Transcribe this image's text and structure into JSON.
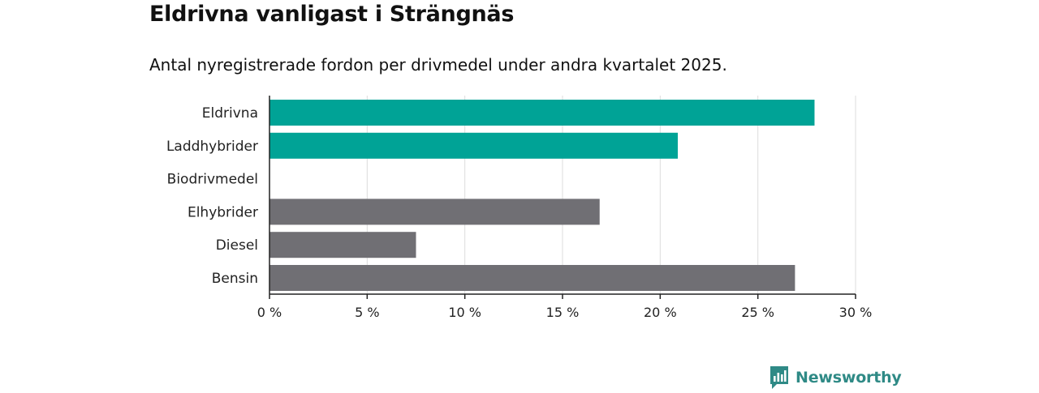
{
  "header": {
    "title": "Eldrivna vanligast i Strängnäs",
    "subtitle": "Antal nyregistrerade fordon per drivmedel under andra kvartalet 2025."
  },
  "brand": {
    "name": "Newsworthy",
    "icon": "newsworthy-logo-icon",
    "color": "#2f8a86"
  },
  "colors": {
    "highlight": "#00a396",
    "default": "#706f74",
    "grid": "#dcdcdc",
    "axis": "#222222"
  },
  "chart_data": {
    "type": "bar",
    "orientation": "horizontal",
    "categories": [
      "Eldrivna",
      "Laddhybrider",
      "Biodrivmedel",
      "Elhybrider",
      "Diesel",
      "Bensin"
    ],
    "values": [
      27.9,
      20.9,
      0,
      16.9,
      7.5,
      26.9
    ],
    "highlight": [
      true,
      true,
      false,
      false,
      false,
      false
    ],
    "xlim": [
      0,
      30
    ],
    "xticks": [
      0,
      5,
      10,
      15,
      20,
      25,
      30
    ],
    "xtick_labels": [
      "0 %",
      "5 %",
      "10 %",
      "15 %",
      "20 %",
      "25 %",
      "30 %"
    ],
    "grid": true,
    "xlabel": "",
    "ylabel": ""
  }
}
